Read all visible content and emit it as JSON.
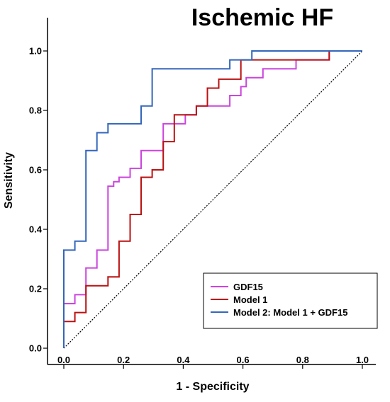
{
  "chart_data": {
    "type": "line",
    "title": "Ischemic HF",
    "xlabel": "1 - Specificity",
    "ylabel": "Sensitivity",
    "xlim": [
      0,
      1
    ],
    "ylim": [
      0,
      1
    ],
    "x_ticks": [
      "0.0",
      "0.2",
      "0.4",
      "0.6",
      "0.8",
      "1.0"
    ],
    "y_ticks": [
      "0.0",
      "0.2",
      "0.4",
      "0.6",
      "0.8",
      "1.0"
    ],
    "grid": false,
    "legend_position": "bottom-right",
    "reference_line": {
      "style": "dotted",
      "from": [
        0,
        0
      ],
      "to": [
        1,
        1
      ],
      "color": "#000000"
    },
    "series": [
      {
        "name": "GDF15",
        "color": "#cc44dd",
        "points": [
          [
            0,
            0
          ],
          [
            0,
            0.15
          ],
          [
            0.037,
            0.15
          ],
          [
            0.037,
            0.18
          ],
          [
            0.074,
            0.18
          ],
          [
            0.074,
            0.27
          ],
          [
            0.111,
            0.27
          ],
          [
            0.111,
            0.33
          ],
          [
            0.148,
            0.33
          ],
          [
            0.148,
            0.545
          ],
          [
            0.167,
            0.545
          ],
          [
            0.167,
            0.56
          ],
          [
            0.185,
            0.56
          ],
          [
            0.185,
            0.575
          ],
          [
            0.222,
            0.575
          ],
          [
            0.222,
            0.605
          ],
          [
            0.259,
            0.605
          ],
          [
            0.259,
            0.665
          ],
          [
            0.333,
            0.665
          ],
          [
            0.333,
            0.755
          ],
          [
            0.407,
            0.755
          ],
          [
            0.407,
            0.785
          ],
          [
            0.444,
            0.785
          ],
          [
            0.444,
            0.815
          ],
          [
            0.556,
            0.815
          ],
          [
            0.556,
            0.85
          ],
          [
            0.593,
            0.85
          ],
          [
            0.593,
            0.88
          ],
          [
            0.611,
            0.88
          ],
          [
            0.611,
            0.91
          ],
          [
            0.667,
            0.91
          ],
          [
            0.667,
            0.94
          ],
          [
            0.778,
            0.94
          ],
          [
            0.778,
            0.97
          ],
          [
            0.889,
            0.97
          ],
          [
            0.889,
            1.0
          ],
          [
            1,
            1
          ]
        ]
      },
      {
        "name": "Model 1",
        "color": "#bb1111",
        "points": [
          [
            0,
            0
          ],
          [
            0,
            0.09
          ],
          [
            0.037,
            0.09
          ],
          [
            0.037,
            0.12
          ],
          [
            0.074,
            0.12
          ],
          [
            0.074,
            0.21
          ],
          [
            0.148,
            0.21
          ],
          [
            0.148,
            0.24
          ],
          [
            0.185,
            0.24
          ],
          [
            0.185,
            0.36
          ],
          [
            0.222,
            0.36
          ],
          [
            0.222,
            0.45
          ],
          [
            0.259,
            0.45
          ],
          [
            0.259,
            0.575
          ],
          [
            0.296,
            0.575
          ],
          [
            0.296,
            0.6
          ],
          [
            0.333,
            0.6
          ],
          [
            0.333,
            0.695
          ],
          [
            0.37,
            0.695
          ],
          [
            0.37,
            0.785
          ],
          [
            0.444,
            0.785
          ],
          [
            0.444,
            0.815
          ],
          [
            0.481,
            0.815
          ],
          [
            0.481,
            0.875
          ],
          [
            0.519,
            0.875
          ],
          [
            0.519,
            0.905
          ],
          [
            0.593,
            0.905
          ],
          [
            0.593,
            0.97
          ],
          [
            0.889,
            0.97
          ],
          [
            0.889,
            1.0
          ],
          [
            1,
            1
          ]
        ]
      },
      {
        "name": "Model 2: Model 1 + GDF15",
        "color": "#3366bb",
        "points": [
          [
            0,
            0
          ],
          [
            0,
            0.33
          ],
          [
            0.037,
            0.33
          ],
          [
            0.037,
            0.36
          ],
          [
            0.074,
            0.36
          ],
          [
            0.074,
            0.665
          ],
          [
            0.111,
            0.665
          ],
          [
            0.111,
            0.725
          ],
          [
            0.148,
            0.725
          ],
          [
            0.148,
            0.755
          ],
          [
            0.259,
            0.755
          ],
          [
            0.259,
            0.815
          ],
          [
            0.296,
            0.815
          ],
          [
            0.296,
            0.94
          ],
          [
            0.556,
            0.94
          ],
          [
            0.556,
            0.97
          ],
          [
            0.63,
            0.97
          ],
          [
            0.63,
            1.0
          ],
          [
            1,
            1
          ]
        ]
      }
    ]
  }
}
